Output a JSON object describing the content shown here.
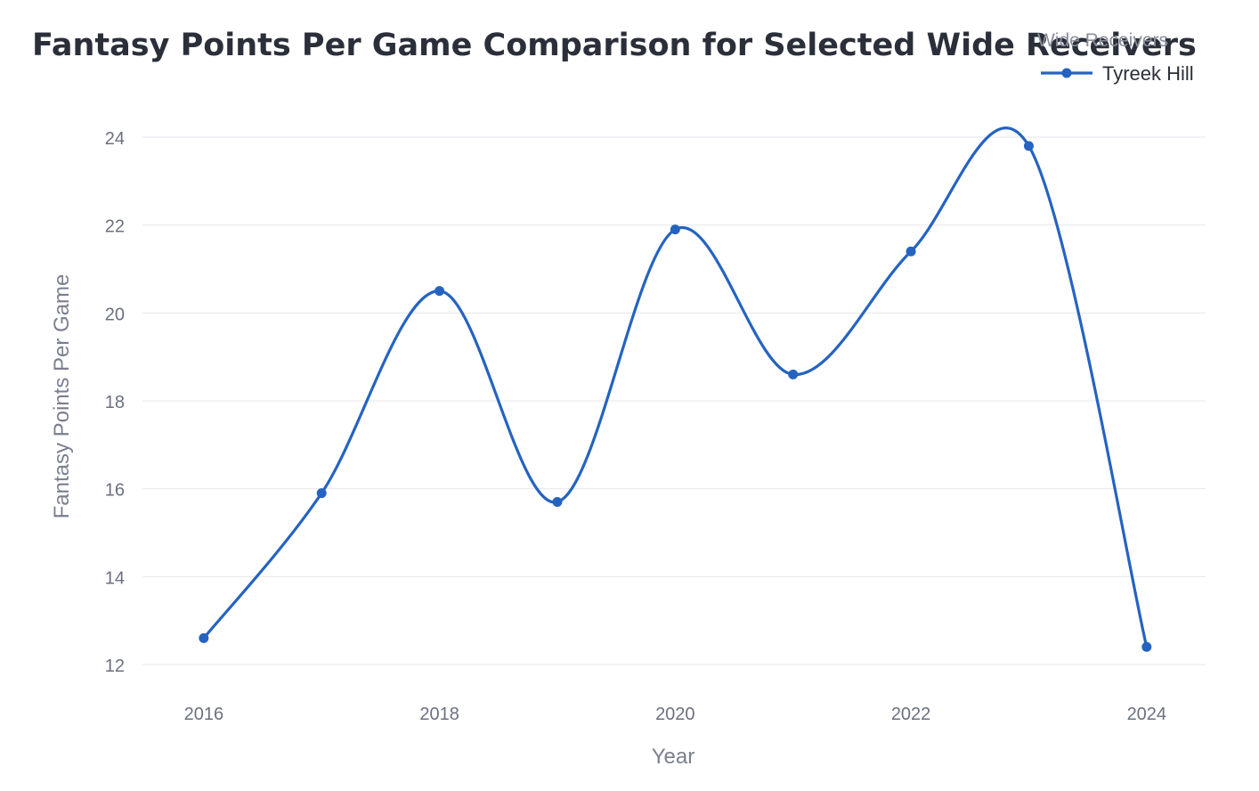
{
  "chart_data": {
    "type": "line",
    "title": "Fantasy Points Per Game Comparison for Selected Wide Receivers",
    "xlabel": "Year",
    "ylabel": "Fantasy Points Per Game",
    "x": [
      2016,
      2017,
      2018,
      2019,
      2020,
      2021,
      2022,
      2023,
      2024
    ],
    "series": [
      {
        "name": "Tyreek Hill",
        "values": [
          12.6,
          15.9,
          20.5,
          15.7,
          21.9,
          18.6,
          21.4,
          23.8,
          12.4
        ],
        "color": "#2563c0"
      }
    ],
    "xticks": [
      "2016",
      "2018",
      "2020",
      "2022",
      "2024"
    ],
    "yticks": [
      "12",
      "14",
      "16",
      "18",
      "20",
      "22",
      "24"
    ],
    "xlim": [
      2015.48,
      2024.5
    ],
    "ylim": [
      12,
      24
    ],
    "grid": true,
    "legend": {
      "title": "Wide Receivers",
      "position": "top-right"
    },
    "smooth": true
  }
}
